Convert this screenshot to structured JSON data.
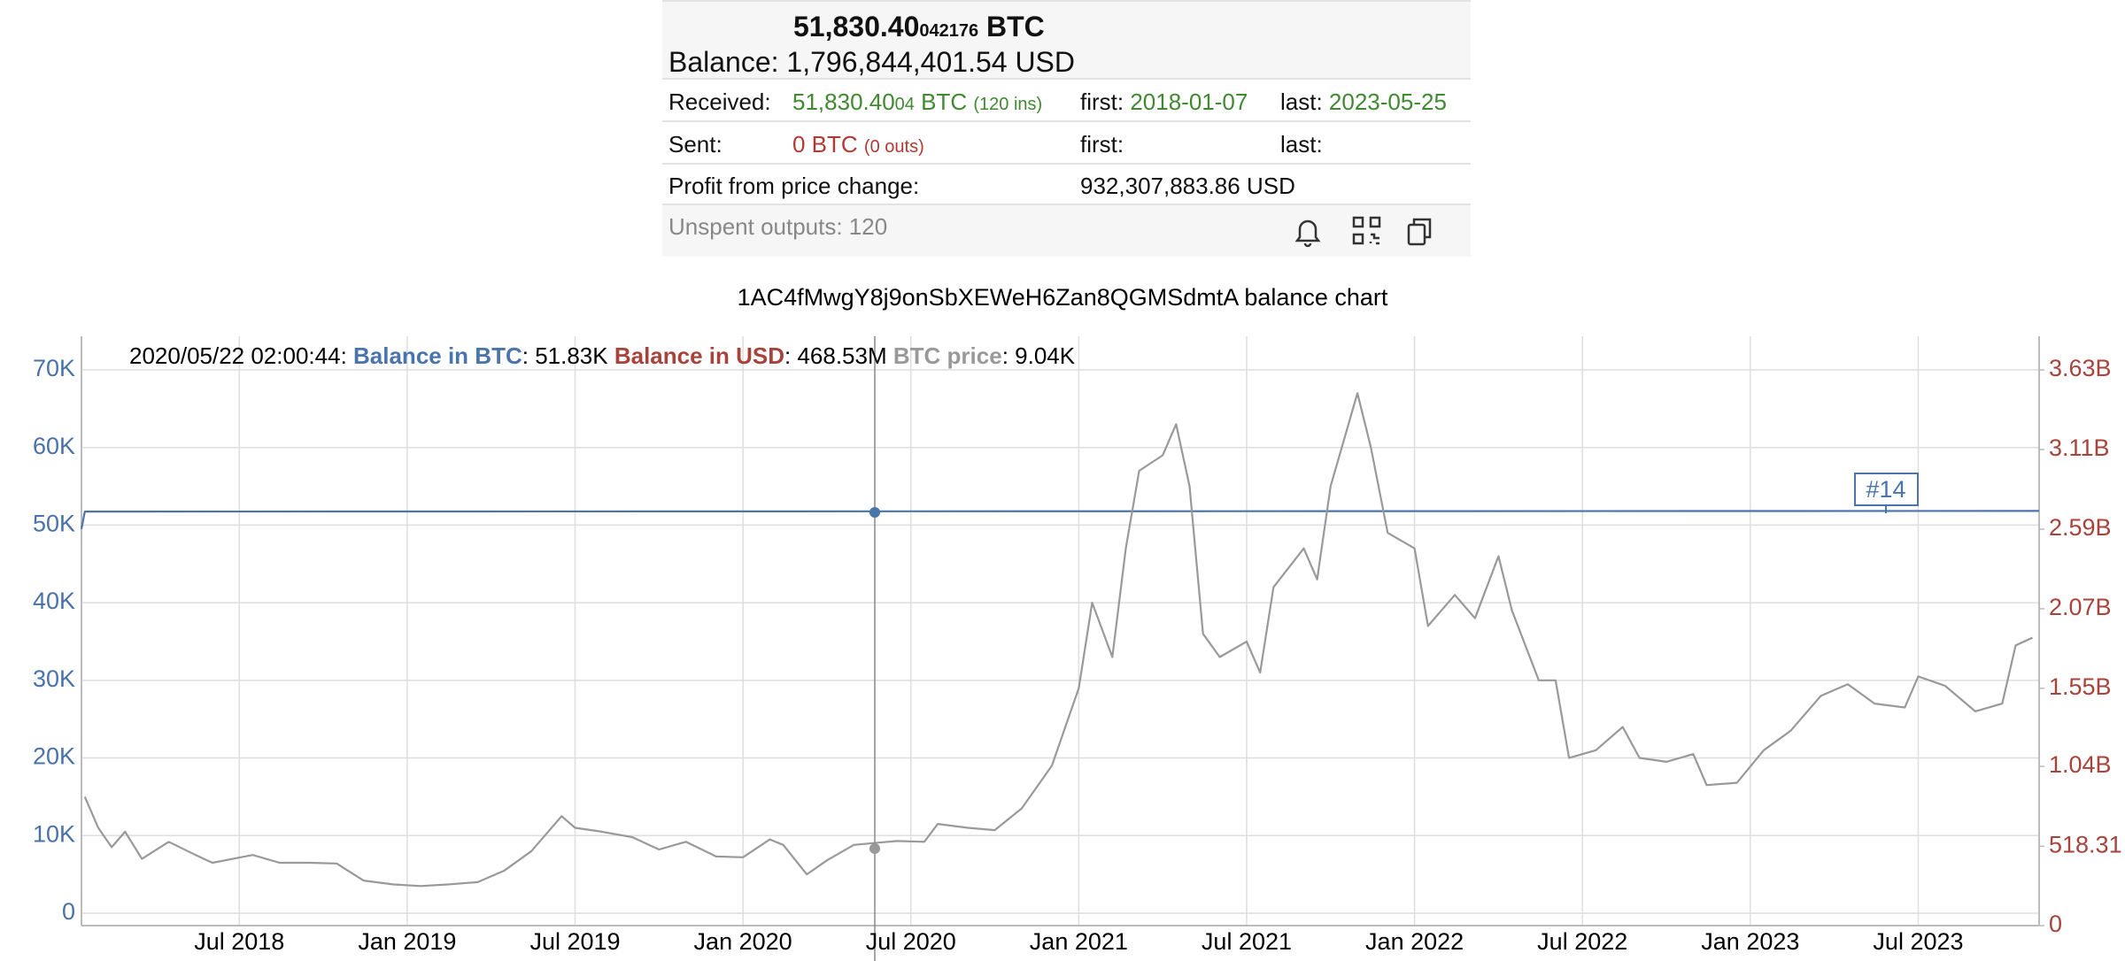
{
  "summary": {
    "btc_main": "51,830.40",
    "btc_small": "042176",
    "btc_unit": "BTC",
    "balance_usd": "Balance: 1,796,844,401.54 USD",
    "received": {
      "label": "Received:",
      "amount": "51,830.40",
      "amount_small": "04",
      "unit": "BTC",
      "count": "(120 ins)",
      "first_label": "first:",
      "first": "2018-01-07",
      "last_label": "last:",
      "last": "2023-05-25"
    },
    "sent": {
      "label": "Sent:",
      "amount": "0 BTC",
      "count": "(0 outs)",
      "first_label": "first:",
      "last_label": "last:"
    },
    "profit": {
      "label": "Profit from price change:",
      "value": "932,307,883.86 USD"
    },
    "unspent": "Unspent outputs: 120"
  },
  "chart_data": {
    "type": "line",
    "title": "1AC4fMwgY8j9onSbXEWeH6Zan8QGMSdmtA balance chart",
    "tooltip": {
      "date": "2020/05/22 02:00:44",
      "balance_btc": "51.83K",
      "balance_usd_name": "Balance in USD",
      "balance_usd": "468.53M",
      "btc_price": "9.04K"
    },
    "annotation": "#14",
    "grid": true,
    "xlim": [
      2018.03,
      2023.86
    ],
    "xticks": [
      {
        "value": 2018.5,
        "label": "Jul 2018"
      },
      {
        "value": 2019.0,
        "label": "Jan 2019"
      },
      {
        "value": 2019.5,
        "label": "Jul 2019"
      },
      {
        "value": 2020.0,
        "label": "Jan 2020"
      },
      {
        "value": 2020.5,
        "label": "Jul 2020"
      },
      {
        "value": 2021.0,
        "label": "Jan 2021"
      },
      {
        "value": 2021.5,
        "label": "Jul 2021"
      },
      {
        "value": 2022.0,
        "label": "Jan 2022"
      },
      {
        "value": 2022.5,
        "label": "Jul 2022"
      },
      {
        "value": 2023.0,
        "label": "Jan 2023"
      },
      {
        "value": 2023.5,
        "label": "Jul 2023"
      }
    ],
    "ylim": [
      -1600,
      74330
    ],
    "yticks": [
      0,
      {
        "value": 10000,
        "label": "10K"
      },
      {
        "value": 20000,
        "label": "20K"
      },
      {
        "value": 30000,
        "label": "30K"
      },
      {
        "value": 40000,
        "label": "40K"
      },
      {
        "value": 50000,
        "label": "50K"
      },
      {
        "value": 60000,
        "label": "60K"
      },
      {
        "value": 70000,
        "label": "70K"
      }
    ],
    "y2lim": [
      0,
      3850000000
    ],
    "y2ticks": [
      0,
      {
        "value": 518310000,
        "label": "518.31"
      },
      {
        "value": 1040000000,
        "label": "1.04B"
      },
      {
        "value": 1550000000,
        "label": "1.55B"
      },
      {
        "value": 2070000000,
        "label": "2.07B"
      },
      {
        "value": 2590000000,
        "label": "2.59B"
      },
      {
        "value": 3110000000,
        "label": "3.11B"
      },
      {
        "value": 3630000000,
        "label": "3.63B"
      }
    ],
    "series": [
      {
        "name": "Balance in BTC",
        "color": "#4a74ac",
        "x": [
          2018.03,
          2018.04,
          2023.86
        ],
        "values": [
          49500,
          51750,
          51830
        ]
      },
      {
        "name": "BTC price",
        "color": "#999999",
        "x": [
          2018.04,
          2018.08,
          2018.12,
          2018.16,
          2018.21,
          2018.29,
          2018.37,
          2018.42,
          2018.54,
          2018.62,
          2018.71,
          2018.79,
          2018.87,
          2018.96,
          2019.04,
          2019.12,
          2019.21,
          2019.29,
          2019.37,
          2019.46,
          2019.5,
          2019.58,
          2019.67,
          2019.75,
          2019.83,
          2019.92,
          2020.0,
          2020.08,
          2020.12,
          2020.19,
          2020.25,
          2020.33,
          2020.39,
          2020.46,
          2020.54,
          2020.58,
          2020.67,
          2020.75,
          2020.83,
          2020.92,
          2021.0,
          2021.04,
          2021.1,
          2021.14,
          2021.18,
          2021.25,
          2021.29,
          2021.33,
          2021.37,
          2021.42,
          2021.5,
          2021.54,
          2021.58,
          2021.67,
          2021.71,
          2021.75,
          2021.83,
          2021.87,
          2021.92,
          2022.0,
          2022.04,
          2022.12,
          2022.18,
          2022.25,
          2022.29,
          2022.37,
          2022.42,
          2022.46,
          2022.54,
          2022.62,
          2022.67,
          2022.75,
          2022.83,
          2022.87,
          2022.96,
          2023.04,
          2023.12,
          2023.21,
          2023.29,
          2023.37,
          2023.46,
          2023.5,
          2023.58,
          2023.67,
          2023.75,
          2023.79,
          2023.84
        ],
        "values": [
          15000,
          11000,
          8500,
          10500,
          7000,
          9200,
          7500,
          6500,
          7500,
          6500,
          6500,
          6400,
          4200,
          3700,
          3500,
          3700,
          4000,
          5500,
          8000,
          12500,
          11000,
          10500,
          9800,
          8200,
          9200,
          7300,
          7200,
          9500,
          8800,
          5000,
          6800,
          8800,
          9040,
          9300,
          9200,
          11500,
          11000,
          10700,
          13500,
          19000,
          29000,
          40000,
          33000,
          47000,
          57000,
          59000,
          63000,
          55000,
          36000,
          33000,
          35000,
          31000,
          42000,
          47000,
          43000,
          55000,
          67000,
          60000,
          49000,
          47000,
          37000,
          41000,
          38000,
          46000,
          39000,
          30000,
          30000,
          20000,
          21000,
          24000,
          20000,
          19500,
          20500,
          16500,
          16800,
          21000,
          23500,
          28000,
          29500,
          27000,
          26500,
          30500,
          29300,
          26000,
          27000,
          34500,
          35500
        ]
      }
    ]
  }
}
